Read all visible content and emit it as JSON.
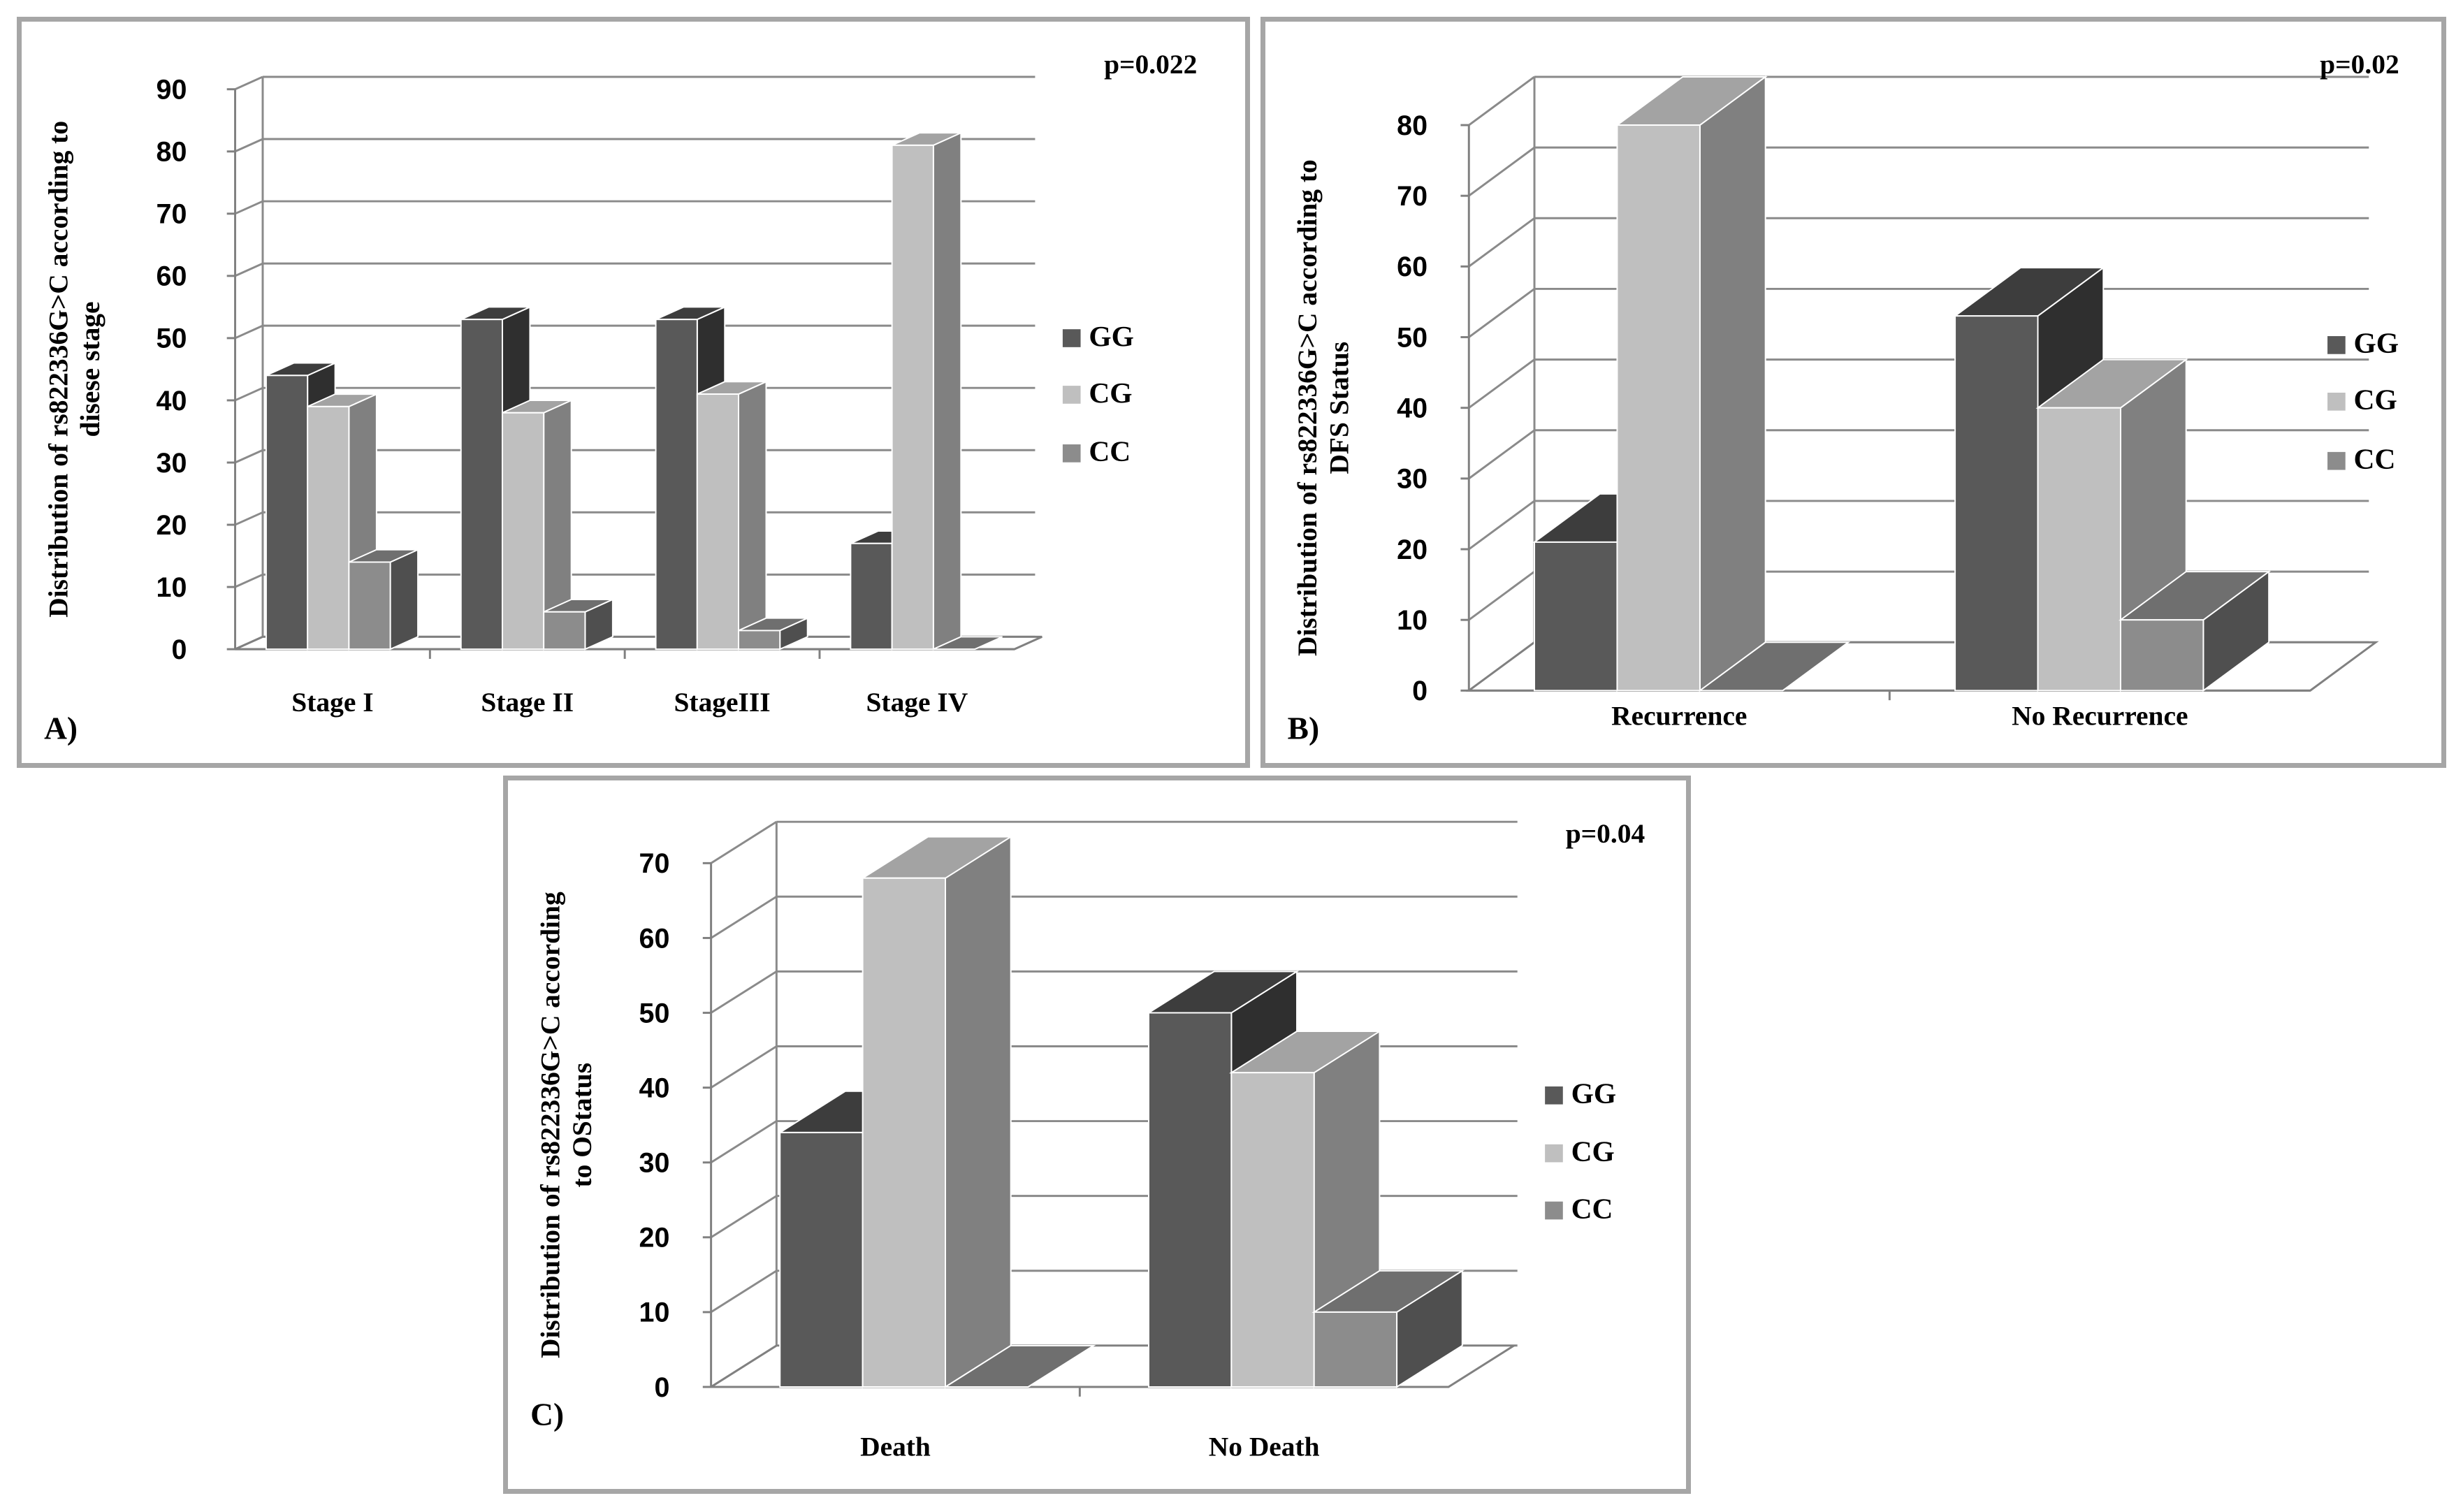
{
  "chart_data": [
    {
      "id": "A",
      "type": "bar",
      "panel_label": "A)",
      "p_value": "p=0.022",
      "ylabel": [
        "Distribution of rs822336G>C according to",
        "disese stage"
      ],
      "xlabel": "",
      "categories": [
        "Stage I",
        "Stage II",
        "StageIII",
        "Stage IV"
      ],
      "ylim": [
        0,
        90
      ],
      "yticks": [
        0,
        10,
        20,
        30,
        40,
        50,
        60,
        70,
        80,
        90
      ],
      "series": [
        {
          "name": "GG",
          "values": [
            44,
            53,
            53,
            17
          ]
        },
        {
          "name": "CG",
          "values": [
            39,
            38,
            41,
            81
          ]
        },
        {
          "name": "CC",
          "values": [
            14,
            6,
            3,
            0
          ]
        }
      ],
      "legend": [
        "GG",
        "CG",
        "CC"
      ],
      "legend_position": "right",
      "grid": true
    },
    {
      "id": "B",
      "type": "bar",
      "panel_label": "B)",
      "p_value": "p=0.02",
      "ylabel": [
        "Distribution of rs822336G>C according to",
        "DFS Status"
      ],
      "xlabel": "",
      "categories": [
        "Recurrence",
        "No Recurrence"
      ],
      "ylim": [
        0,
        80
      ],
      "yticks": [
        0,
        10,
        20,
        30,
        40,
        50,
        60,
        70,
        80
      ],
      "series": [
        {
          "name": "GG",
          "values": [
            21,
            53
          ]
        },
        {
          "name": "CG",
          "values": [
            80,
            40
          ]
        },
        {
          "name": "CC",
          "values": [
            0,
            10
          ]
        }
      ],
      "legend": [
        "GG",
        "CG",
        "CC"
      ],
      "legend_position": "right",
      "grid": true
    },
    {
      "id": "C",
      "type": "bar",
      "panel_label": "C)",
      "p_value": "p=0.04",
      "ylabel": [
        "Distribution of rs822336G>C according",
        "to OStatus"
      ],
      "xlabel": "",
      "categories": [
        "Death",
        "No Death"
      ],
      "ylim": [
        0,
        70
      ],
      "yticks": [
        0,
        10,
        20,
        30,
        40,
        50,
        60,
        70
      ],
      "series": [
        {
          "name": "GG",
          "values": [
            34,
            50
          ]
        },
        {
          "name": "CG",
          "values": [
            68,
            42
          ]
        },
        {
          "name": "CC",
          "values": [
            0,
            10
          ]
        }
      ],
      "legend": [
        "GG",
        "CG",
        "CC"
      ],
      "legend_position": "right",
      "grid": true
    }
  ],
  "colors": {
    "GG": {
      "front": "#595959",
      "top": "#3d3d3d",
      "side": "#2f2f2f"
    },
    "CG": {
      "front": "#bfbfbf",
      "top": "#a3a3a3",
      "side": "#808080"
    },
    "CC": {
      "front": "#8c8c8c",
      "top": "#6f6f6f",
      "side": "#4f4f4f"
    },
    "grid": "#8a8a8a",
    "axis": "#808080",
    "text": "#000000"
  }
}
